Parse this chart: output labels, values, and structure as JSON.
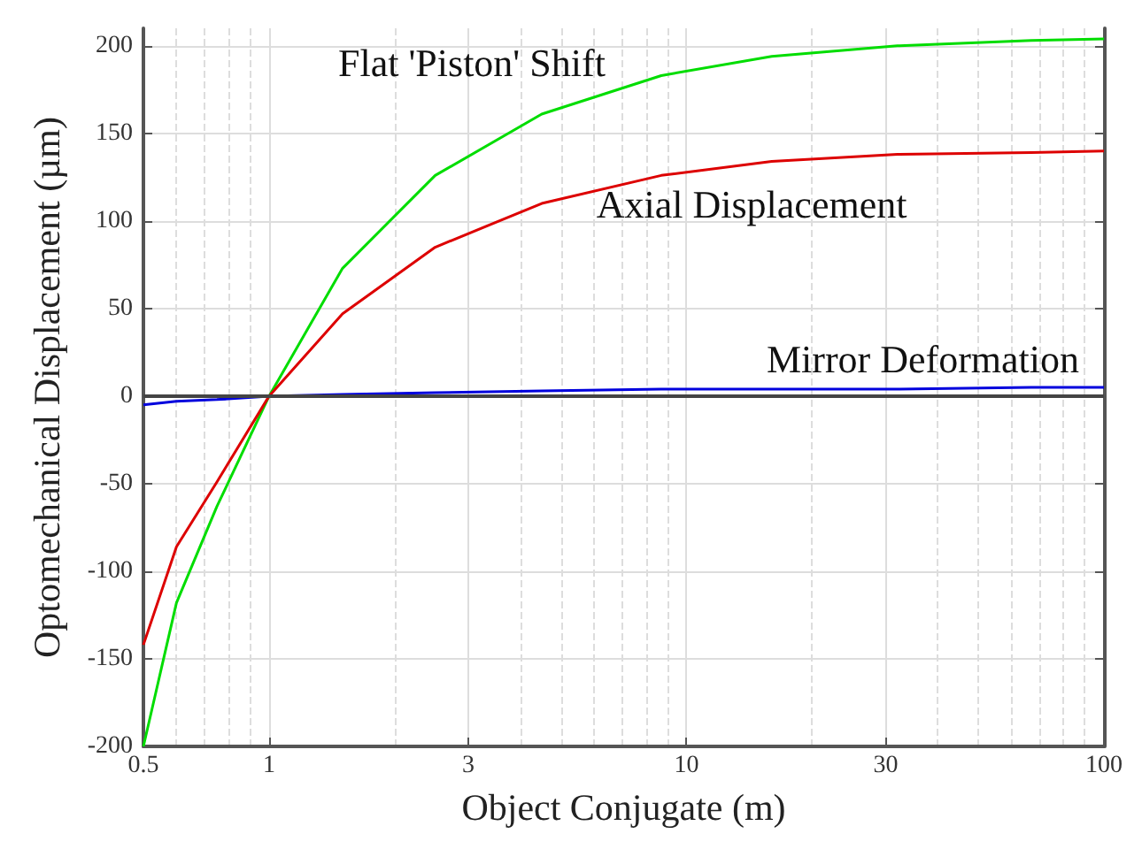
{
  "chart_data": {
    "type": "line",
    "xlabel": "Object Conjugate (m)",
    "ylabel": "Optomechanical Displacement (µm)",
    "x": [
      0.5,
      0.6,
      0.75,
      1,
      1.5,
      2.5,
      4.5,
      8.7,
      16,
      32,
      67,
      100
    ],
    "series": [
      {
        "name": "Flat 'Piston' Shift",
        "color": "#00dd00",
        "values": [
          -200,
          -118,
          -63,
          0,
          73,
          126,
          161,
          183,
          194,
          200,
          203,
          204
        ]
      },
      {
        "name": "Axial Displacement",
        "color": "#dd0000",
        "values": [
          -142,
          -86,
          -49,
          0,
          47,
          85,
          110,
          126,
          134,
          138,
          139,
          140
        ]
      },
      {
        "name": "Mirror Deformation",
        "color": "#0000dd",
        "values": [
          -5,
          -3,
          -2,
          0,
          1,
          2,
          3,
          4,
          4,
          4,
          5,
          5
        ]
      }
    ],
    "log": "x",
    "xlim": [
      0.5,
      100
    ],
    "xticks": [
      0.5,
      1,
      3,
      10,
      30,
      100
    ],
    "ylim": [
      -200,
      210
    ],
    "yticks": [
      -200,
      -150,
      -100,
      -50,
      0,
      50,
      100,
      150,
      200
    ],
    "ref_lines": [
      {
        "axis": "y",
        "value": 0,
        "color": "#444444"
      }
    ],
    "grid": true,
    "legend": false,
    "marker": "none",
    "line_style": "solid"
  }
}
